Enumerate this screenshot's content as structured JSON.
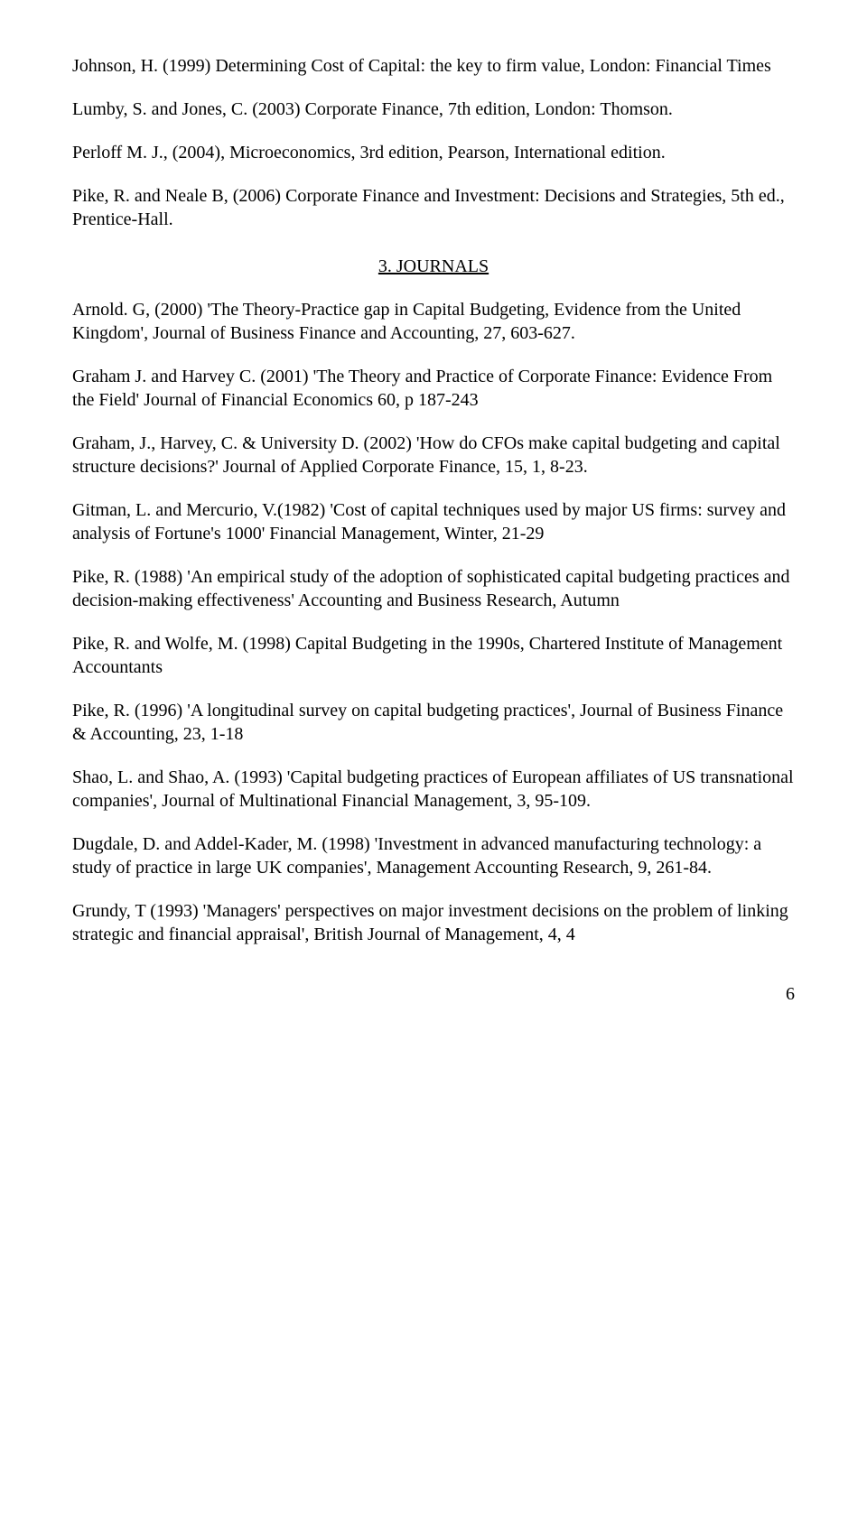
{
  "refs": {
    "johnson": "Johnson, H. (1999) Determining Cost of Capital: the key to firm value, London: Financial Times",
    "lumby": "Lumby, S. and Jones, C. (2003) Corporate Finance, 7th edition,  London: Thomson.",
    "perloff": "Perloff M. J.,  (2004), Microeconomics, 3rd edition, Pearson, International edition.",
    "pike_neale": "Pike, R. and  Neale B, (2006) Corporate Finance and Investment: Decisions and Strategies, 5th ed., Prentice-Hall."
  },
  "section_heading": "3. JOURNALS",
  "journals": {
    "arnold": "Arnold. G, (2000) 'The Theory-Practice gap in Capital Budgeting, Evidence from the United Kingdom', Journal of Business Finance and Accounting, 27, 603-627.",
    "graham_harvey": "Graham J. and Harvey C. (2001) 'The Theory and Practice of Corporate Finance: Evidence From the Field' Journal of Financial Economics 60, p 187-243",
    "graham_harvey_univ": "Graham, J., Harvey, C. & University D. (2002) 'How do CFOs make capital budgeting and capital structure decisions?' Journal of Applied Corporate Finance, 15, 1, 8-23.",
    "gitman": "Gitman, L. and Mercurio, V.(1982)  'Cost of capital techniques used by major US firms: survey and analysis of Fortune's 1000' Financial Management, Winter, 21-29",
    "pike_1988": "Pike, R. (1988) 'An empirical study of the adoption of sophisticated capital budgeting practices and decision-making effectiveness' Accounting and Business Research, Autumn",
    "pike_wolfe": "Pike, R. and Wolfe, M. (1998) Capital Budgeting in the 1990s, Chartered Institute of Management Accountants",
    "pike_1996": "Pike, R. (1996) 'A longitudinal survey on capital budgeting practices', Journal of Business Finance & Accounting, 23, 1-18",
    "shao": "Shao, L. and Shao, A. (1993) 'Capital budgeting practices of European affiliates of US transnational companies', Journal of Multinational Financial Management, 3, 95-109.",
    "dugdale": "Dugdale, D. and Addel-Kader, M. (1998) 'Investment in advanced manufacturing technology: a study of practice in large UK companies', Management Accounting Research, 9, 261-84.",
    "grundy": "Grundy, T (1993) 'Managers' perspectives on major investment decisions on the problem of linking strategic and financial appraisal', British Journal of Management, 4, 4"
  },
  "page_number": "6"
}
